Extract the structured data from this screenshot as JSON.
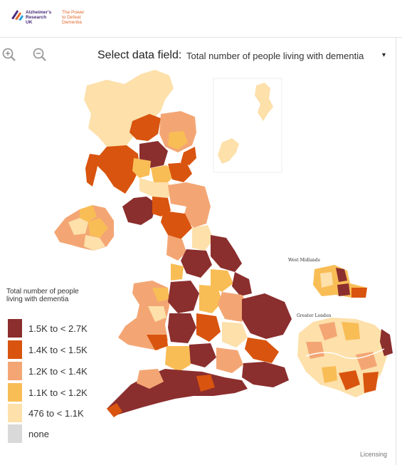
{
  "header": {
    "logo_name": "Alzheimer's\nResearch\nUK",
    "logo_tagline": "The Power\nto Defeat\nDementia"
  },
  "controls": {
    "zoom_in_icon": "zoom-in-icon",
    "zoom_out_icon": "zoom-out-icon",
    "select_label": "Select data field:",
    "select_value": "Total number of people living with dementia",
    "select_caret": "▾"
  },
  "map": {
    "inset_west_midlands": "West Midlands",
    "inset_greater_london": "Greater London"
  },
  "legend": {
    "title": "Total number of people living with dementia",
    "items": [
      {
        "label": "1.5K to < 2.7K",
        "color": "#8b2e2e"
      },
      {
        "label": "1.4K to < 1.5K",
        "color": "#d9540e"
      },
      {
        "label": "1.2K to < 1.4K",
        "color": "#f3a674"
      },
      {
        "label": "1.1K to < 1.2K",
        "color": "#f9bd56"
      },
      {
        "label": "476 to < 1.1K",
        "color": "#fde0aa"
      },
      {
        "label": "none",
        "color": "#d9d9d9"
      }
    ]
  },
  "footer": {
    "licensing": "Licensing"
  }
}
